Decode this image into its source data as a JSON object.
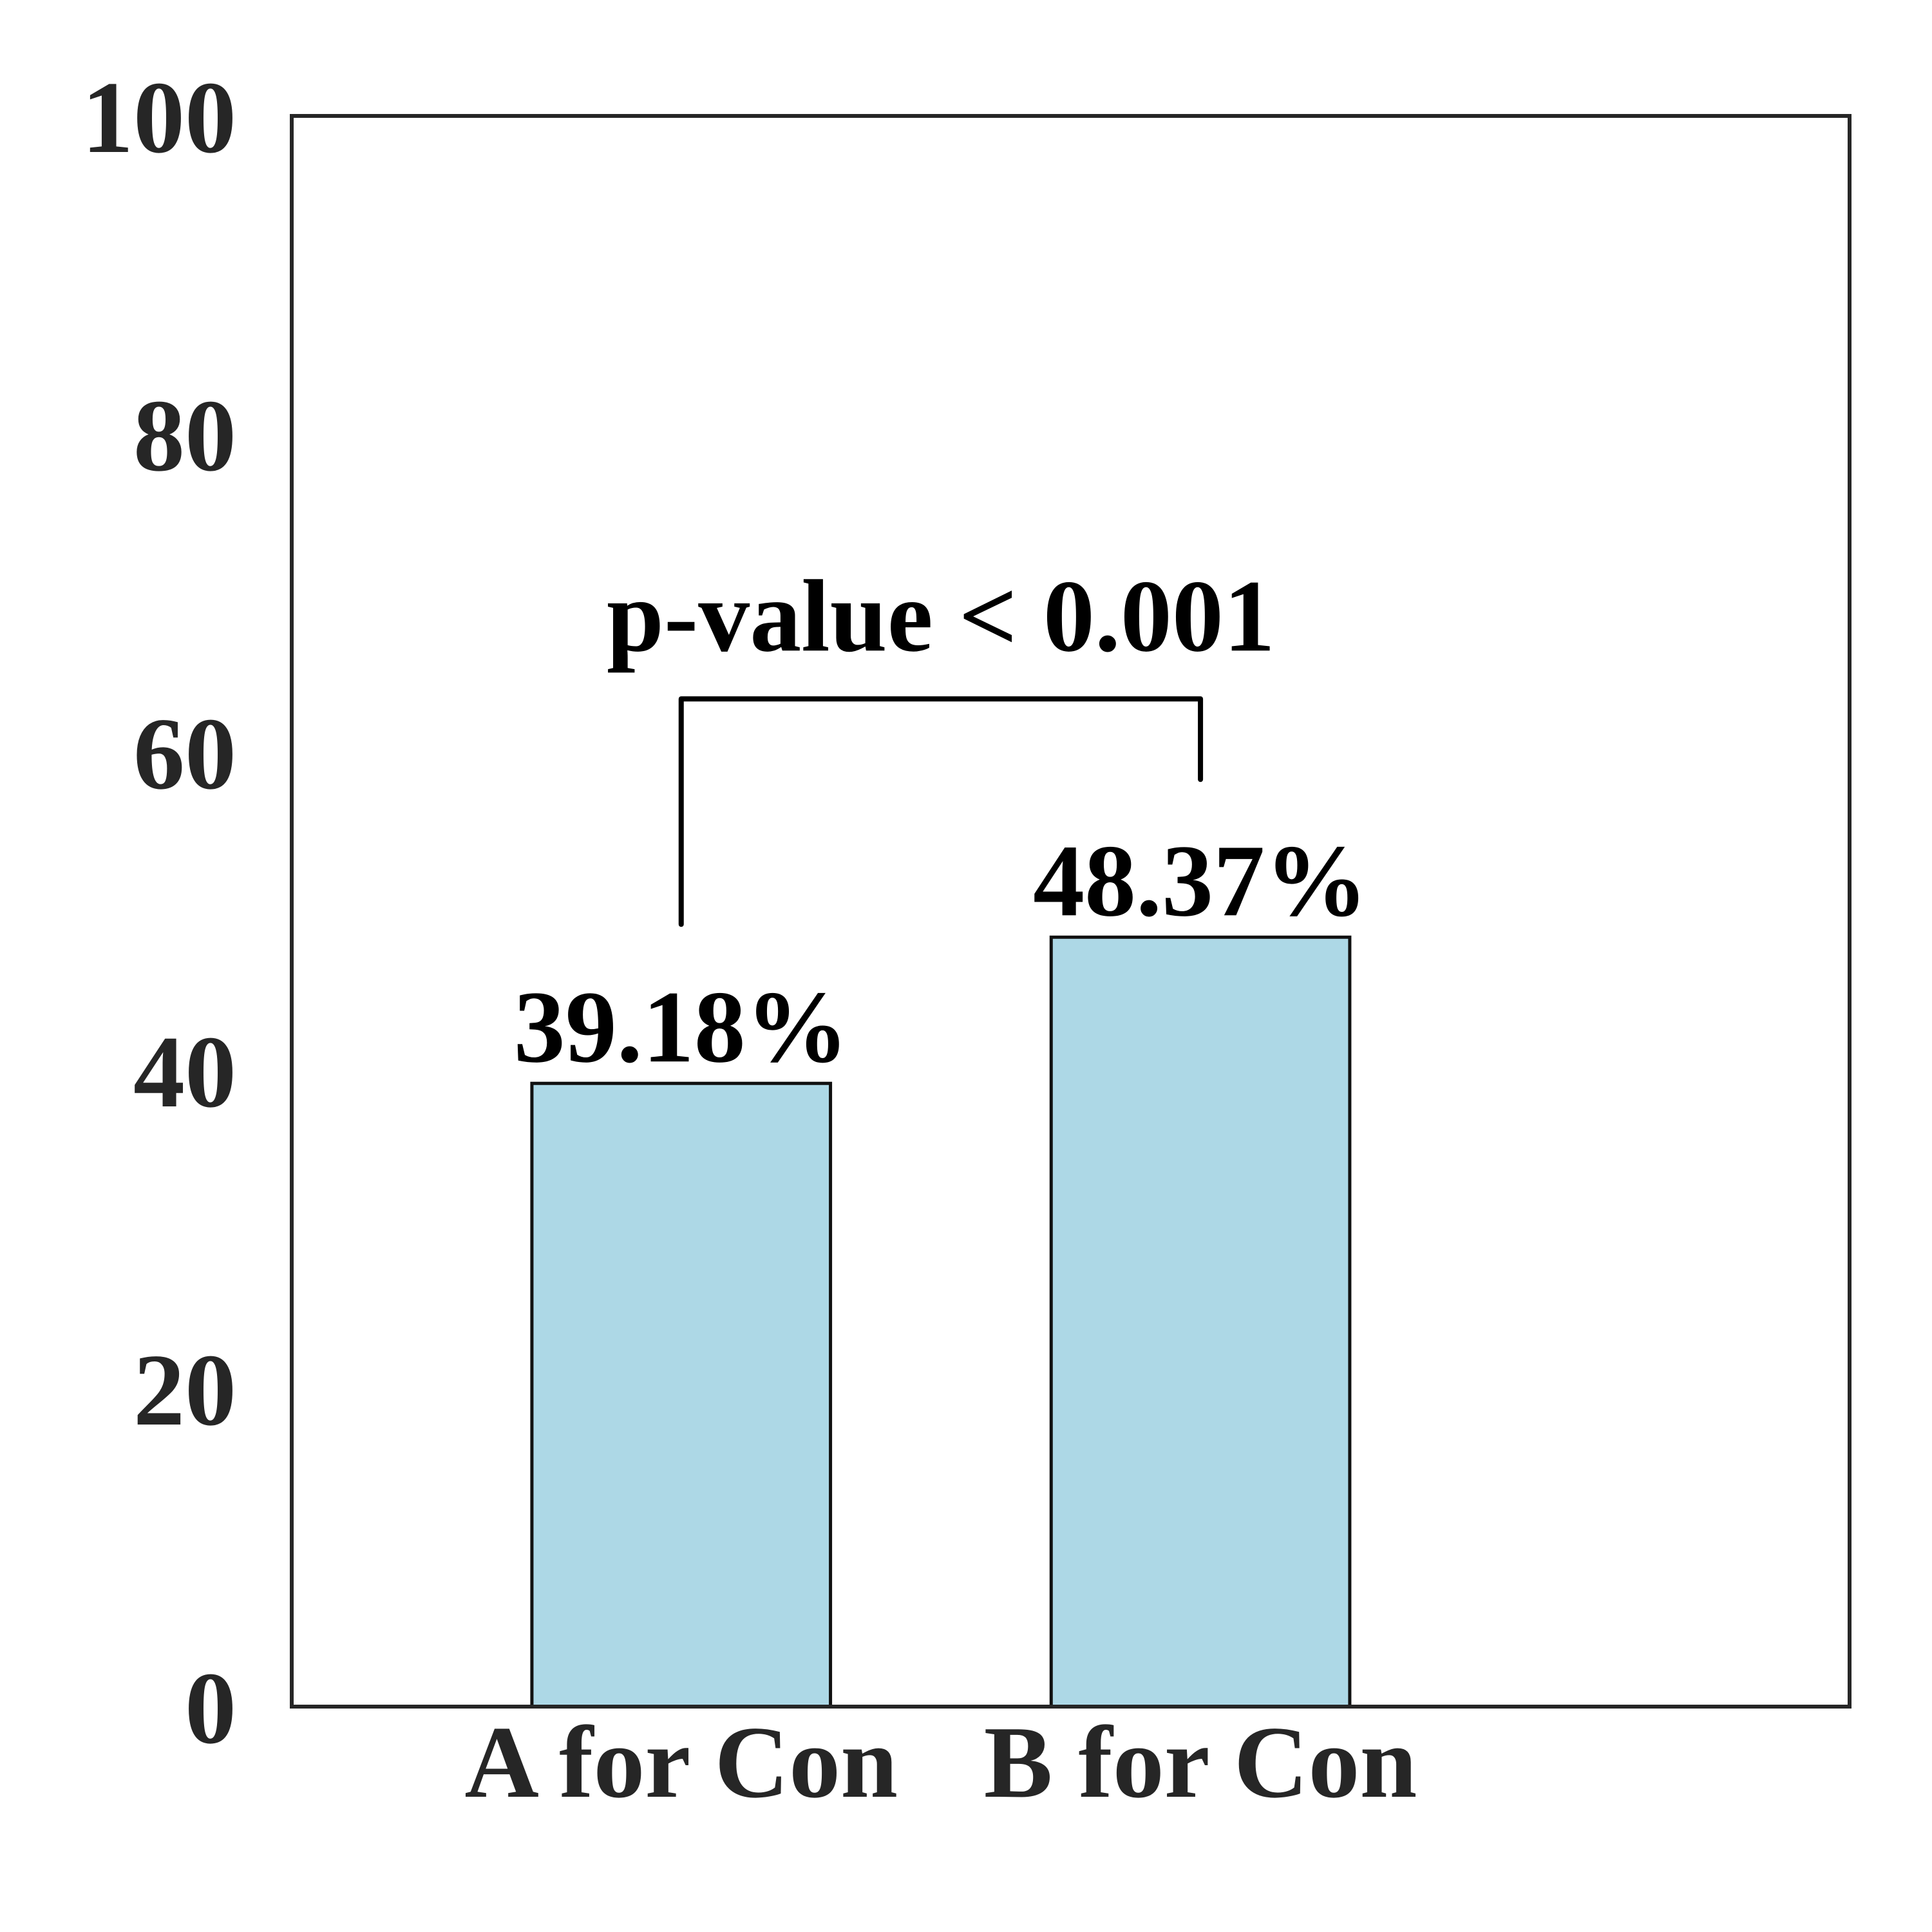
{
  "chart_data": {
    "type": "bar",
    "categories": [
      "A for Con",
      "B for Con"
    ],
    "values": [
      39.18,
      48.37
    ],
    "value_labels": [
      "39.18%",
      "48.37%"
    ],
    "color": "#add8e6",
    "ylim": [
      0,
      100
    ],
    "yticks": [
      0,
      20,
      40,
      60,
      80,
      100
    ],
    "grid": false,
    "annotation": "p-value < 0.001"
  }
}
